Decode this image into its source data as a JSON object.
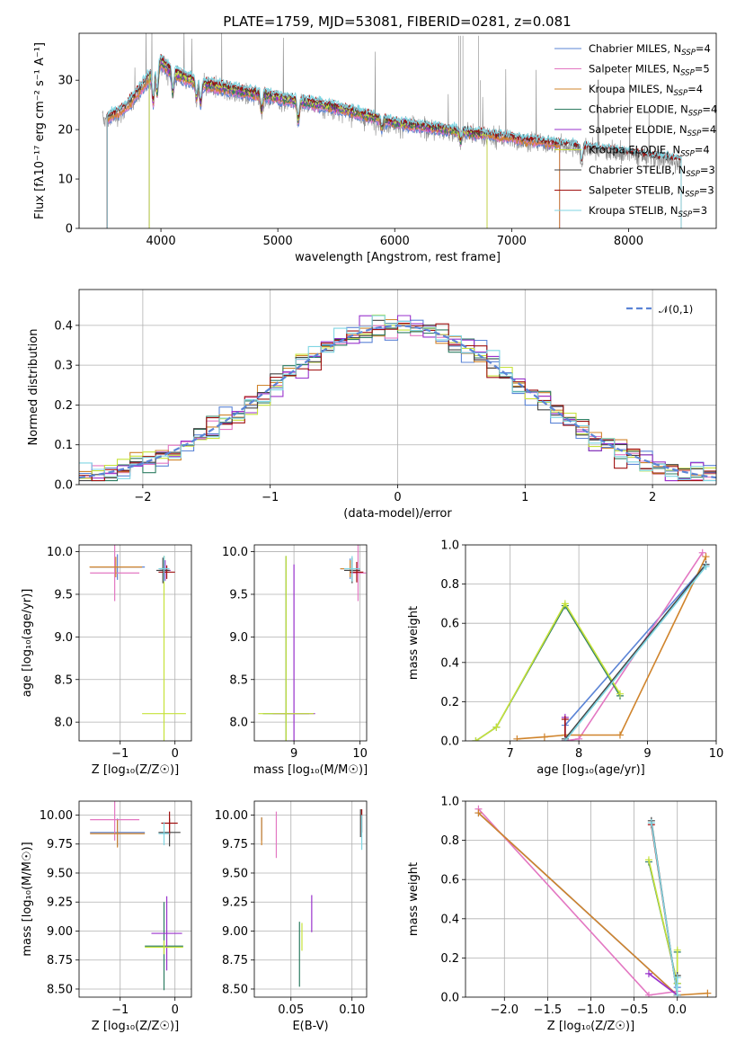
{
  "figure": {
    "title": "PLATE=1759, MJD=53081, FIBERID=0281, z=0.081"
  },
  "colors": {
    "Chabrier MILES": "#5b84d6",
    "Salpeter MILES": "#e377c2",
    "Kroupa MILES": "#d0842c",
    "Chabrier ELODIE": "#2e7d62",
    "Salpeter ELODIE": "#9932cc",
    "Kroupa ELODIE": "#c6e23a",
    "Chabrier STELIB": "#444444",
    "Salpeter STELIB": "#a01010",
    "Kroupa STELIB": "#7fd6e3"
  },
  "chart_data": [
    {
      "id": "spectrum",
      "type": "line",
      "xlabel": "wavelength [Angstrom, rest frame]",
      "ylabel": "Flux [fλ10⁻¹⁷ erg cm⁻² s⁻¹ A⁻¹]",
      "xlim": [
        3300,
        8750
      ],
      "ylim": [
        0,
        39.5
      ],
      "xticks": [
        4000,
        5000,
        6000,
        7000,
        8000
      ],
      "yticks": [
        0,
        10,
        20,
        30
      ],
      "grid": false,
      "legend_position": "top-right",
      "legend": [
        {
          "label": "Chabrier MILES",
          "nssp": "4"
        },
        {
          "label": "Salpeter MILES",
          "nssp": "5"
        },
        {
          "label": "Kroupa MILES",
          "nssp": "4"
        },
        {
          "label": "Chabrier ELODIE",
          "nssp": "4"
        },
        {
          "label": "Salpeter ELODIE",
          "nssp": "4"
        },
        {
          "label": "Kroupa ELODIE",
          "nssp": "4"
        },
        {
          "label": "Chabrier STELIB",
          "nssp": "3"
        },
        {
          "label": "Salpeter STELIB",
          "nssp": "3"
        },
        {
          "label": "Kroupa STELIB",
          "nssp": "3"
        }
      ],
      "continuum": {
        "x": [
          3550,
          3700,
          3800,
          3900,
          4000,
          4100,
          4300,
          4500,
          5000,
          5500,
          6000,
          6500,
          7000,
          7500,
          8000,
          8450
        ],
        "y": [
          22,
          24,
          27,
          30,
          33,
          31,
          29,
          28,
          26,
          24,
          21,
          19.5,
          18,
          16.5,
          15,
          13.5
        ]
      },
      "data_range": [
        3500,
        8450
      ],
      "model_ranges": {
        "MILES": [
          3540,
          7410
        ],
        "ELODIE": [
          3900,
          6790
        ],
        "STELIB": [
          3540,
          8450
        ]
      }
    },
    {
      "id": "residuals",
      "type": "histogram",
      "xlabel": "(data-model)/error",
      "ylabel": "Normed distribution",
      "xlim": [
        -2.5,
        2.5
      ],
      "ylim": [
        0,
        0.49
      ],
      "xticks": [
        -2,
        -1,
        0,
        1,
        2
      ],
      "yticks": [
        0.0,
        0.1,
        0.2,
        0.3,
        0.4
      ],
      "grid": true,
      "legend_position": "top-right",
      "reference_label": "𝒩(0,1)",
      "bin_width": 0.1,
      "approx_peak": 0.4
    },
    {
      "id": "age_vs_Z",
      "type": "errorbar",
      "xlabel": "Z [log₁₀(Z/Z☉)]",
      "ylabel": "age  [log₁₀(age/yr)]",
      "xlim": [
        -1.75,
        0.3
      ],
      "ylim": [
        7.78,
        10.08
      ],
      "xticks": [
        -1,
        0
      ],
      "yticks": [
        8.0,
        8.5,
        9.0,
        9.5,
        10.0
      ],
      "grid": true,
      "points": [
        {
          "model": "Chabrier MILES",
          "x": -1.05,
          "y": 9.82,
          "xerr": 0.5,
          "yerr": 0.15
        },
        {
          "model": "Salpeter MILES",
          "x": -1.1,
          "y": 9.75,
          "xerr": 0.45,
          "yerr": 0.33
        },
        {
          "model": "Kroupa MILES",
          "x": -1.08,
          "y": 9.82,
          "xerr": 0.48,
          "yerr": 0.12
        },
        {
          "model": "Chabrier ELODIE",
          "x": -0.2,
          "y": 9.8,
          "xerr": 0.08,
          "yerr": 0.15
        },
        {
          "model": "Salpeter ELODIE",
          "x": -0.18,
          "y": 9.78,
          "xerr": 0.1,
          "yerr": 0.12
        },
        {
          "model": "Kroupa ELODIE",
          "x": -0.2,
          "y": 8.1,
          "xerr": 0.4,
          "yerr": 1.85
        },
        {
          "model": "Chabrier STELIB",
          "x": -0.22,
          "y": 9.78,
          "xerr": 0.12,
          "yerr": 0.15
        },
        {
          "model": "Salpeter STELIB",
          "x": -0.15,
          "y": 9.76,
          "xerr": 0.15,
          "yerr": 0.08
        },
        {
          "model": "Kroupa STELIB",
          "x": -0.2,
          "y": 9.8,
          "xerr": 0.1,
          "yerr": 0.15
        }
      ]
    },
    {
      "id": "age_vs_mass",
      "type": "errorbar",
      "xlabel": "mass [log₁₀(M/M☉)]",
      "ylabel": "",
      "xlim": [
        8.4,
        10.1
      ],
      "ylim": [
        7.78,
        10.08
      ],
      "xticks": [
        9,
        10
      ],
      "yticks": [
        8.0,
        8.5,
        9.0,
        9.5,
        10.0
      ],
      "grid": true,
      "points": [
        {
          "model": "Chabrier MILES",
          "x": 9.85,
          "y": 9.8,
          "xerr": 0.15,
          "yerr": 0.12
        },
        {
          "model": "Salpeter MILES",
          "x": 9.97,
          "y": 9.75,
          "xerr": 0.12,
          "yerr": 0.33
        },
        {
          "model": "Kroupa MILES",
          "x": 9.85,
          "y": 9.8,
          "xerr": 0.15,
          "yerr": 0.1
        },
        {
          "model": "Chabrier ELODIE",
          "x": 8.88,
          "y": 8.1,
          "xerr": 0.35,
          "yerr": 1.85
        },
        {
          "model": "Salpeter ELODIE",
          "x": 9.0,
          "y": 8.1,
          "xerr": 0.32,
          "yerr": 1.75
        },
        {
          "model": "Kroupa ELODIE",
          "x": 8.88,
          "y": 8.1,
          "xerr": 0.42,
          "yerr": 1.85
        },
        {
          "model": "Chabrier STELIB",
          "x": 9.88,
          "y": 9.78,
          "xerr": 0.12,
          "yerr": 0.15
        },
        {
          "model": "Salpeter STELIB",
          "x": 9.95,
          "y": 9.76,
          "xerr": 0.1,
          "yerr": 0.12
        },
        {
          "model": "Kroupa STELIB",
          "x": 9.88,
          "y": 9.8,
          "xerr": 0.12,
          "yerr": 0.15
        }
      ]
    },
    {
      "id": "weight_vs_age",
      "type": "line",
      "xlabel": "age  [log₁₀(age/yr)]",
      "ylabel": "mass weight",
      "xlim": [
        6.35,
        10.0
      ],
      "ylim": [
        0,
        1
      ],
      "xticks": [
        7,
        8,
        9,
        10
      ],
      "yticks": [
        0.0,
        0.2,
        0.4,
        0.6,
        0.8,
        1.0
      ],
      "grid": true,
      "series": [
        {
          "model": "Chabrier MILES",
          "x": [
            7.8,
            7.8,
            9.85
          ],
          "y": [
            0.0,
            0.08,
            0.9
          ]
        },
        {
          "model": "Salpeter MILES",
          "x": [
            7.8,
            8.0,
            9.8
          ],
          "y": [
            0.0,
            0.01,
            0.96
          ]
        },
        {
          "model": "Kroupa MILES",
          "x": [
            7.1,
            7.5,
            7.8,
            8.6,
            9.85
          ],
          "y": [
            0.01,
            0.02,
            0.03,
            0.03,
            0.94
          ]
        },
        {
          "model": "Chabrier ELODIE",
          "x": [
            6.5,
            6.8,
            7.8,
            8.6
          ],
          "y": [
            0.0,
            0.07,
            0.69,
            0.23
          ]
        },
        {
          "model": "Salpeter ELODIE",
          "x": [
            7.8,
            7.8
          ],
          "y": [
            0.0,
            0.12
          ]
        },
        {
          "model": "Kroupa ELODIE",
          "x": [
            6.5,
            6.8,
            7.8,
            8.6
          ],
          "y": [
            0.0,
            0.07,
            0.7,
            0.24
          ]
        },
        {
          "model": "Chabrier STELIB",
          "x": [
            7.8,
            9.85
          ],
          "y": [
            0.01,
            0.9
          ]
        },
        {
          "model": "Salpeter STELIB",
          "x": [
            7.8,
            7.8
          ],
          "y": [
            0.0,
            0.11
          ]
        },
        {
          "model": "Kroupa STELIB",
          "x": [
            7.8,
            9.85
          ],
          "y": [
            0.0,
            0.89
          ]
        }
      ]
    },
    {
      "id": "mass_vs_Z",
      "type": "errorbar",
      "xlabel": "Z [log₁₀(Z/Z☉)]",
      "ylabel": "mass [log₁₀(M/M☉)]",
      "xlim": [
        -1.75,
        0.3
      ],
      "ylim": [
        8.43,
        10.12
      ],
      "xticks": [
        -1,
        0
      ],
      "yticks": [
        8.5,
        8.75,
        9.0,
        9.25,
        9.5,
        9.75,
        10.0
      ],
      "grid": true,
      "points": [
        {
          "model": "Chabrier MILES",
          "x": -1.05,
          "y": 9.85,
          "xerr": 0.5,
          "yerr": 0.12
        },
        {
          "model": "Salpeter MILES",
          "x": -1.1,
          "y": 9.96,
          "xerr": 0.45,
          "yerr": 0.18
        },
        {
          "model": "Kroupa MILES",
          "x": -1.05,
          "y": 9.84,
          "xerr": 0.5,
          "yerr": 0.12
        },
        {
          "model": "Chabrier ELODIE",
          "x": -0.2,
          "y": 8.87,
          "xerr": 0.35,
          "yerr": 0.38
        },
        {
          "model": "Salpeter ELODIE",
          "x": -0.15,
          "y": 8.98,
          "xerr": 0.28,
          "yerr": 0.32
        },
        {
          "model": "Kroupa ELODIE",
          "x": -0.2,
          "y": 8.86,
          "xerr": 0.35,
          "yerr": 0.06
        },
        {
          "model": "Chabrier STELIB",
          "x": -0.1,
          "y": 9.85,
          "xerr": 0.2,
          "yerr": 0.12
        },
        {
          "model": "Salpeter STELIB",
          "x": -0.1,
          "y": 9.93,
          "xerr": 0.15,
          "yerr": 0.1
        },
        {
          "model": "Kroupa STELIB",
          "x": -0.2,
          "y": 9.84,
          "xerr": 0.1,
          "yerr": 0.1
        }
      ]
    },
    {
      "id": "mass_vs_EBV",
      "type": "errorbar",
      "xlabel": "E(B-V)",
      "ylabel": "",
      "xlim": [
        0.02,
        0.112
      ],
      "ylim": [
        8.43,
        10.12
      ],
      "xticks": [
        0.05,
        0.1
      ],
      "yticks": [
        8.5,
        8.75,
        9.0,
        9.25,
        9.5,
        9.75,
        10.0
      ],
      "grid": true,
      "points": [
        {
          "model": "Chabrier MILES",
          "x": 0.026,
          "y": 9.88,
          "xerr": 0,
          "yerr": 0.1
        },
        {
          "model": "Salpeter MILES",
          "x": 0.038,
          "y": 9.83,
          "xerr": 0,
          "yerr": 0.2
        },
        {
          "model": "Kroupa MILES",
          "x": 0.026,
          "y": 9.86,
          "xerr": 0,
          "yerr": 0.12
        },
        {
          "model": "Chabrier ELODIE",
          "x": 0.057,
          "y": 8.8,
          "xerr": 0,
          "yerr": 0.28
        },
        {
          "model": "Salpeter ELODIE",
          "x": 0.067,
          "y": 9.15,
          "xerr": 0,
          "yerr": 0.16
        },
        {
          "model": "Kroupa ELODIE",
          "x": 0.059,
          "y": 8.95,
          "xerr": 0,
          "yerr": 0.12
        },
        {
          "model": "Chabrier STELIB",
          "x": 0.107,
          "y": 9.93,
          "xerr": 0,
          "yerr": 0.12
        },
        {
          "model": "Salpeter STELIB",
          "x": 0.108,
          "y": 9.95,
          "xerr": 0,
          "yerr": 0.1
        },
        {
          "model": "Kroupa STELIB",
          "x": 0.108,
          "y": 9.85,
          "xerr": 0,
          "yerr": 0.15
        }
      ]
    },
    {
      "id": "weight_vs_Z",
      "type": "line",
      "xlabel": "Z [log₁₀(Z/Z☉)]",
      "ylabel": "mass weight",
      "xlim": [
        -2.45,
        0.45
      ],
      "ylim": [
        0,
        1
      ],
      "xticks": [
        -2.0,
        -1.5,
        -1.0,
        -0.5,
        0.0
      ],
      "yticks": [
        0.0,
        0.2,
        0.4,
        0.6,
        0.8,
        1.0
      ],
      "grid": true,
      "series": [
        {
          "model": "Chabrier MILES",
          "x": [
            -2.3,
            0.0,
            0.0
          ],
          "y": [
            0.94,
            0.01,
            0.05
          ]
        },
        {
          "model": "Salpeter MILES",
          "x": [
            -2.3,
            -0.33,
            0.0
          ],
          "y": [
            0.96,
            0.01,
            0.03
          ]
        },
        {
          "model": "Kroupa MILES",
          "x": [
            -2.3,
            0.0,
            0.35
          ],
          "y": [
            0.94,
            0.01,
            0.02
          ]
        },
        {
          "model": "Chabrier ELODIE",
          "x": [
            -0.33,
            0.0,
            0.0
          ],
          "y": [
            0.69,
            0.07,
            0.23
          ]
        },
        {
          "model": "Salpeter ELODIE",
          "x": [
            -0.33,
            0.0
          ],
          "y": [
            0.12,
            0.01
          ]
        },
        {
          "model": "Kroupa ELODIE",
          "x": [
            -0.33,
            0.0,
            0.0
          ],
          "y": [
            0.7,
            0.07,
            0.24
          ]
        },
        {
          "model": "Chabrier STELIB",
          "x": [
            -0.3,
            0.0,
            0.0
          ],
          "y": [
            0.9,
            0.01,
            0.11
          ]
        },
        {
          "model": "Salpeter STELIB",
          "x": [
            -0.3,
            0.0
          ],
          "y": [
            0.88,
            0.01
          ]
        },
        {
          "model": "Kroupa STELIB",
          "x": [
            -0.3,
            0.0,
            0.0
          ],
          "y": [
            0.89,
            0.01,
            0.1
          ]
        }
      ]
    }
  ]
}
